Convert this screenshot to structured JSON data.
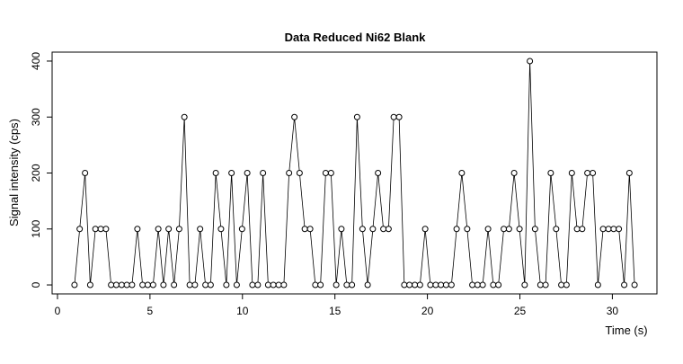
{
  "chart_data": {
    "type": "line",
    "title": "Data Reduced Ni62 Blank",
    "x_label": "Time (s)",
    "y_label": "Signal intensity (cps)",
    "x": [
      0.92,
      1.2,
      1.49,
      1.77,
      2.05,
      2.34,
      2.62,
      2.9,
      3.18,
      3.47,
      3.75,
      4.03,
      4.32,
      4.6,
      4.88,
      5.17,
      5.45,
      5.73,
      6.01,
      6.3,
      6.58,
      6.86,
      7.15,
      7.43,
      7.71,
      8.0,
      8.28,
      8.56,
      8.84,
      9.13,
      9.41,
      9.69,
      9.98,
      10.26,
      10.54,
      10.83,
      11.11,
      11.39,
      11.67,
      11.96,
      12.24,
      12.52,
      12.81,
      13.09,
      13.37,
      13.66,
      13.94,
      14.22,
      14.5,
      14.79,
      15.07,
      15.35,
      15.64,
      15.92,
      16.2,
      16.49,
      16.77,
      17.05,
      17.33,
      17.62,
      17.9,
      18.18,
      18.47,
      18.75,
      19.03,
      19.32,
      19.6,
      19.88,
      20.16,
      20.45,
      20.73,
      21.01,
      21.3,
      21.58,
      21.86,
      22.15,
      22.43,
      22.71,
      22.99,
      23.28,
      23.56,
      23.84,
      24.13,
      24.41,
      24.69,
      24.98,
      25.26,
      25.54,
      25.82,
      26.11,
      26.39,
      26.67,
      26.96,
      27.24,
      27.52,
      27.81,
      28.09,
      28.37,
      28.65,
      28.94,
      29.22,
      29.5,
      29.79,
      30.07,
      30.35,
      30.64,
      30.92,
      31.2
    ],
    "series": [
      {
        "color": "#000000",
        "values": [
          0,
          100,
          200,
          0,
          100,
          100,
          100,
          0,
          0,
          0,
          0,
          0,
          100,
          0,
          0,
          0,
          100,
          0,
          100,
          0,
          100,
          300,
          0,
          0,
          100,
          0,
          0,
          200,
          100,
          0,
          200,
          0,
          100,
          200,
          0,
          0,
          200,
          0,
          0,
          0,
          0,
          200,
          300,
          200,
          100,
          100,
          0,
          0,
          200,
          200,
          0,
          100,
          0,
          0,
          300,
          100,
          0,
          100,
          200,
          100,
          100,
          300,
          300,
          0,
          0,
          0,
          0,
          100,
          0,
          0,
          0,
          0,
          0,
          100,
          200,
          100,
          0,
          0,
          0,
          100,
          0,
          0,
          100,
          100,
          200,
          100,
          0,
          400,
          100,
          0,
          0,
          200,
          100,
          0,
          0,
          200,
          100,
          100,
          200,
          200,
          0,
          100,
          100,
          100,
          100,
          0,
          200,
          0
        ]
      }
    ],
    "xlim": [
      -0.29,
      32.41
    ],
    "ylim": [
      -16,
      416
    ],
    "xticks": [
      0,
      5,
      10,
      15,
      20,
      25,
      30
    ],
    "yticks": [
      0,
      100,
      200,
      300,
      400
    ]
  }
}
